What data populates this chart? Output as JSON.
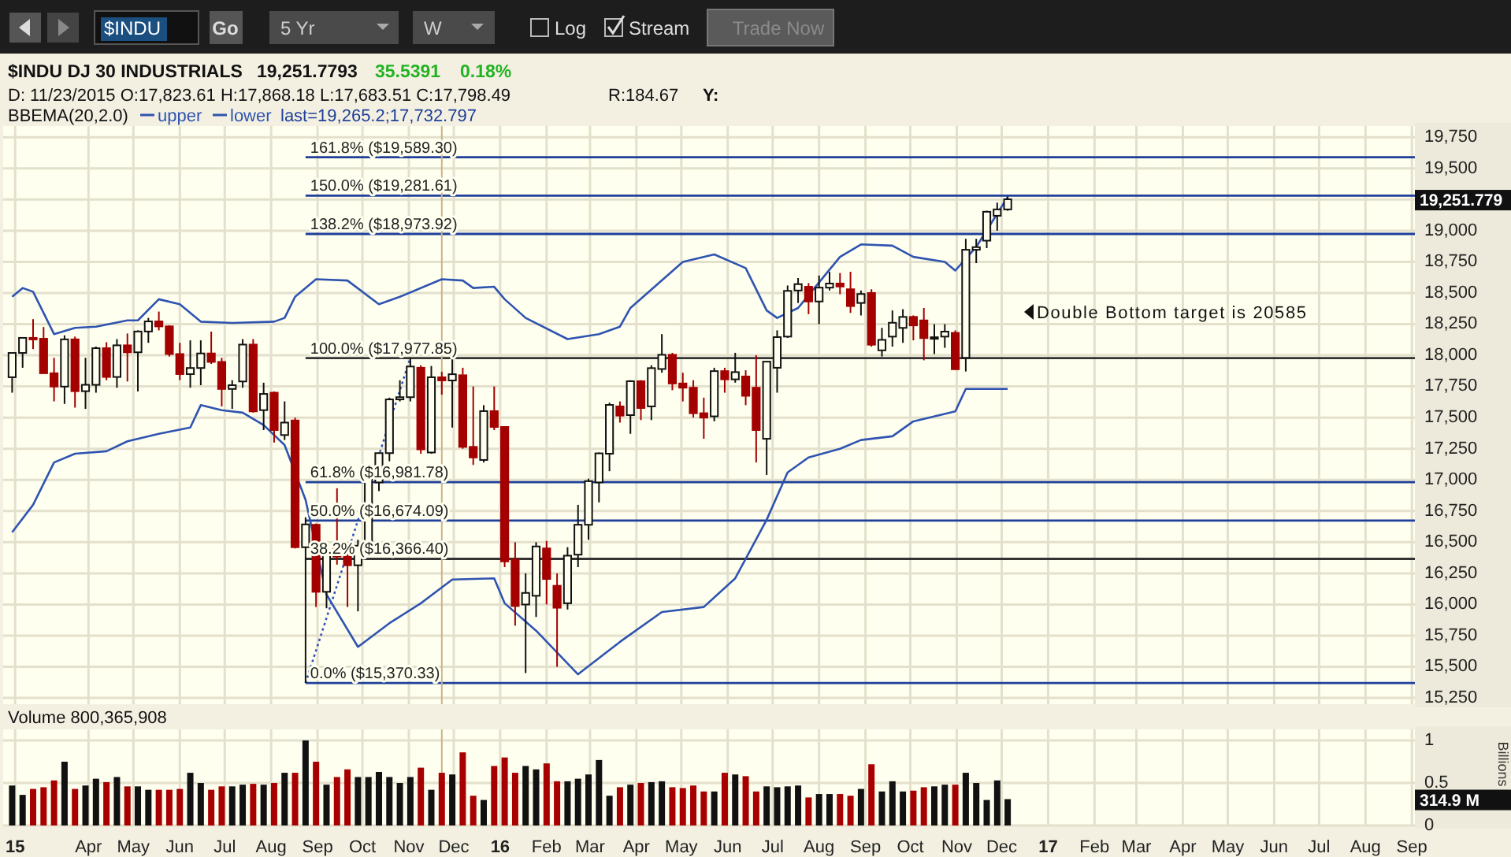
{
  "chart_data": [
    {
      "type": "candlestick",
      "title": "$INDU DJ 30 INDUSTRIALS",
      "legend_title": "BBEMA(20,2.0)",
      "legend": "top left",
      "grid": true,
      "tick_labels": "y",
      "x": [
        "2015-02-09",
        "2015-02-16",
        "2015-02-23",
        "2015-03-02",
        "2015-03-09",
        "2015-03-16",
        "2015-03-23",
        "2015-03-30",
        "2015-04-06",
        "2015-04-13",
        "2015-04-20",
        "2015-04-27",
        "2015-05-04",
        "2015-05-11",
        "2015-05-18",
        "2015-05-25",
        "2015-06-01",
        "2015-06-08",
        "2015-06-15",
        "2015-06-22",
        "2015-06-29",
        "2015-07-06",
        "2015-07-13",
        "2015-07-20",
        "2015-07-27",
        "2015-08-03",
        "2015-08-10",
        "2015-08-17",
        "2015-08-24",
        "2015-08-31",
        "2015-09-07",
        "2015-09-14",
        "2015-09-21",
        "2015-09-28",
        "2015-10-05",
        "2015-10-12",
        "2015-10-19",
        "2015-10-26",
        "2015-11-02",
        "2015-11-09",
        "2015-11-16",
        "2015-11-23",
        "2015-11-30",
        "2015-12-07",
        "2015-12-14",
        "2015-12-21",
        "2015-12-28",
        "2016-01-04",
        "2016-01-11",
        "2016-01-18",
        "2016-01-25",
        "2016-02-01",
        "2016-02-08",
        "2016-02-15",
        "2016-02-22",
        "2016-02-29",
        "2016-03-07",
        "2016-03-14",
        "2016-03-21",
        "2016-03-28",
        "2016-04-04",
        "2016-04-11",
        "2016-04-18",
        "2016-04-25",
        "2016-05-02",
        "2016-05-09",
        "2016-05-16",
        "2016-05-23",
        "2016-05-30",
        "2016-06-06",
        "2016-06-13",
        "2016-06-20",
        "2016-06-27",
        "2016-07-04",
        "2016-07-11",
        "2016-07-18",
        "2016-07-25",
        "2016-08-01",
        "2016-08-08",
        "2016-08-15",
        "2016-08-22",
        "2016-08-29",
        "2016-09-05",
        "2016-09-12",
        "2016-09-19",
        "2016-09-26",
        "2016-10-03",
        "2016-10-10",
        "2016-10-17",
        "2016-10-24",
        "2016-10-31",
        "2016-11-07",
        "2016-11-14",
        "2016-11-21",
        "2016-11-28",
        "2016-12-05"
      ],
      "ohlc": [
        [
          17824,
          18019,
          17700,
          18019
        ],
        [
          18019,
          18140,
          17900,
          18140
        ],
        [
          18140,
          18290,
          18050,
          18133
        ],
        [
          18133,
          18227,
          17856,
          17856
        ],
        [
          17856,
          17980,
          17630,
          17749
        ],
        [
          17749,
          18160,
          17610,
          18128
        ],
        [
          18128,
          18150,
          17580,
          17712
        ],
        [
          17712,
          17980,
          17570,
          17763
        ],
        [
          17763,
          18070,
          17700,
          18057
        ],
        [
          18057,
          18105,
          17800,
          17826
        ],
        [
          17826,
          18130,
          17740,
          18080
        ],
        [
          18080,
          18175,
          17790,
          18024
        ],
        [
          18024,
          18200,
          17710,
          18191
        ],
        [
          18191,
          18300,
          18100,
          18272
        ],
        [
          18272,
          18351,
          18200,
          18232
        ],
        [
          18232,
          18240,
          17990,
          18010
        ],
        [
          18010,
          18100,
          17800,
          17849
        ],
        [
          17849,
          18120,
          17740,
          17898
        ],
        [
          17898,
          18120,
          17760,
          18015
        ],
        [
          18015,
          18190,
          17930,
          17947
        ],
        [
          17947,
          17980,
          17590,
          17730
        ],
        [
          17730,
          17800,
          17570,
          17760
        ],
        [
          17790,
          18130,
          17740,
          18086
        ],
        [
          18086,
          18130,
          17540,
          17550
        ],
        [
          17560,
          17780,
          17400,
          17690
        ],
        [
          17700,
          17710,
          17300,
          17400
        ],
        [
          17360,
          17630,
          17320,
          17460
        ],
        [
          17477,
          17500,
          16450,
          16460
        ],
        [
          16460,
          16700,
          15370.33,
          16643
        ],
        [
          16640,
          16650,
          15980,
          16102
        ],
        [
          16102,
          16480,
          15970,
          16433
        ],
        [
          16450,
          16933,
          16320,
          16385
        ],
        [
          16385,
          16500,
          15980,
          16315
        ],
        [
          16315,
          16520,
          15945,
          16472
        ],
        [
          16500,
          17110,
          16450,
          17084
        ],
        [
          16980,
          17220,
          16910,
          17215
        ],
        [
          17215,
          17660,
          17150,
          17646
        ],
        [
          17646,
          17800,
          17630,
          17664
        ],
        [
          17664,
          17977.85,
          17630,
          17910
        ],
        [
          17900,
          17920,
          17210,
          17245
        ],
        [
          17220,
          17914,
          17210,
          17824
        ],
        [
          17823.61,
          17868.18,
          17683.51,
          17798.49
        ],
        [
          17798,
          17978,
          17420,
          17848
        ],
        [
          17840,
          17900,
          17250,
          17265
        ],
        [
          17265,
          17750,
          17120,
          17180
        ],
        [
          17160,
          17600,
          17140,
          17552
        ],
        [
          17552,
          17750,
          17400,
          17425
        ],
        [
          17425,
          17425,
          16300,
          16346
        ],
        [
          16360,
          16500,
          15830,
          15988
        ],
        [
          16000,
          16250,
          15450,
          16093
        ],
        [
          16070,
          16500,
          15900,
          16466
        ],
        [
          16450,
          16510,
          16000,
          16205
        ],
        [
          16150,
          16250,
          15500,
          15974
        ],
        [
          16010,
          16460,
          15960,
          16392
        ],
        [
          16400,
          16800,
          16300,
          16640
        ],
        [
          16640,
          17010,
          16520,
          16990
        ],
        [
          16980,
          17220,
          16820,
          17213
        ],
        [
          17210,
          17620,
          17070,
          17602
        ],
        [
          17590,
          17630,
          17460,
          17516
        ],
        [
          17520,
          17800,
          17370,
          17792
        ],
        [
          17792,
          17800,
          17480,
          17577
        ],
        [
          17590,
          17920,
          17480,
          17897
        ],
        [
          17890,
          18170,
          17860,
          18004
        ],
        [
          18004,
          18020,
          17720,
          17774
        ],
        [
          17774,
          17860,
          17630,
          17740
        ],
        [
          17740,
          17800,
          17500,
          17535
        ],
        [
          17535,
          17660,
          17330,
          17500
        ],
        [
          17510,
          17900,
          17470,
          17873
        ],
        [
          17873,
          17900,
          17700,
          17807
        ],
        [
          17807,
          18020,
          17780,
          17865
        ],
        [
          17830,
          17880,
          17600,
          17675
        ],
        [
          17740,
          18000,
          17140,
          17400
        ],
        [
          17330,
          17950,
          17040,
          17949
        ],
        [
          17900,
          18200,
          17700,
          18146
        ],
        [
          18150,
          18560,
          18140,
          18517
        ],
        [
          18520,
          18620,
          18420,
          18571
        ],
        [
          18550,
          18580,
          18330,
          18432
        ],
        [
          18432,
          18640,
          18250,
          18543
        ],
        [
          18543,
          18670,
          18520,
          18576
        ],
        [
          18576,
          18660,
          18490,
          18552
        ],
        [
          18530,
          18670,
          18340,
          18395
        ],
        [
          18420,
          18520,
          18320,
          18492
        ],
        [
          18500,
          18530,
          18070,
          18085
        ],
        [
          18040,
          18220,
          17990,
          18124
        ],
        [
          18150,
          18360,
          18070,
          18261
        ],
        [
          18220,
          18370,
          18100,
          18308
        ],
        [
          18308,
          18320,
          18120,
          18240
        ],
        [
          18280,
          18380,
          17960,
          18138
        ],
        [
          18138,
          18250,
          18010,
          18145
        ],
        [
          18150,
          18250,
          18060,
          18190
        ],
        [
          18180,
          18200,
          17883,
          17888
        ],
        [
          17980,
          18935,
          17870,
          18847
        ],
        [
          18847,
          18935,
          18740,
          18868
        ],
        [
          18920,
          19160,
          18860,
          19152
        ],
        [
          19120,
          19225,
          19000,
          19171
        ],
        [
          19171,
          19275,
          19160,
          19251.78
        ]
      ],
      "series": [
        {
          "name": "upper",
          "type": "line",
          "color": "#2f54b0",
          "x": [
            "2015-02-09",
            "2015-02-16",
            "2015-02-23",
            "2015-03-09",
            "2015-03-23",
            "2015-04-06",
            "2015-04-27",
            "2015-05-04",
            "2015-05-18",
            "2015-06-01",
            "2015-06-15",
            "2015-07-06",
            "2015-08-03",
            "2015-08-10",
            "2015-08-17",
            "2015-08-31",
            "2015-09-21",
            "2015-10-12",
            "2015-10-26",
            "2015-11-23",
            "2015-12-07",
            "2015-12-14",
            "2015-12-28",
            "2016-01-04",
            "2016-01-18",
            "2016-02-15",
            "2016-03-07",
            "2016-03-21",
            "2016-03-28",
            "2016-05-02",
            "2016-05-23",
            "2016-06-13",
            "2016-06-27",
            "2016-07-04",
            "2016-07-18",
            "2016-08-15",
            "2016-08-29",
            "2016-09-19",
            "2016-10-03",
            "2016-10-24",
            "2016-10-31",
            "2016-11-14",
            "2016-12-05"
          ],
          "values": [
            18470,
            18540,
            18510,
            18170,
            18220,
            18230,
            18280,
            18280,
            18450,
            18410,
            18270,
            18260,
            18270,
            18300,
            18470,
            18610,
            18600,
            18410,
            18470,
            18610,
            18600,
            18540,
            18550,
            18450,
            18300,
            18130,
            18170,
            18230,
            18380,
            18750,
            18810,
            18700,
            18360,
            18300,
            18380,
            18790,
            18890,
            18880,
            18790,
            18750,
            18680,
            18870,
            19270
          ]
        },
        {
          "name": "lower",
          "type": "line",
          "color": "#2f54b0",
          "x": [
            "2015-02-09",
            "2015-02-23",
            "2015-03-09",
            "2015-03-23",
            "2015-04-13",
            "2015-04-27",
            "2015-05-18",
            "2015-06-08",
            "2015-06-15",
            "2015-06-29",
            "2015-07-13",
            "2015-07-27",
            "2015-08-10",
            "2015-08-24",
            "2015-09-07",
            "2015-09-28",
            "2015-10-19",
            "2015-11-09",
            "2015-11-30",
            "2015-12-28",
            "2016-01-04",
            "2016-01-25",
            "2016-02-22",
            "2016-03-21",
            "2016-04-18",
            "2016-05-16",
            "2016-06-06",
            "2016-06-27",
            "2016-07-11",
            "2016-07-25",
            "2016-08-15",
            "2016-08-29",
            "2016-09-19",
            "2016-10-03",
            "2016-10-31",
            "2016-11-07",
            "2016-12-05"
          ],
          "values": [
            16580,
            16800,
            17140,
            17210,
            17230,
            17310,
            17370,
            17420,
            17600,
            17560,
            17540,
            17440,
            17280,
            16840,
            16080,
            15660,
            15850,
            16010,
            16200,
            16210,
            16010,
            15790,
            15440,
            15700,
            15940,
            15980,
            16210,
            16680,
            17060,
            17180,
            17250,
            17320,
            17350,
            17470,
            17550,
            17730,
            17730
          ]
        },
        {
          "type": "line",
          "color": "#3355bb",
          "line_style": "dotted",
          "x": [
            "2015-08-24",
            "2015-11-02"
          ],
          "values": [
            15370,
            17980
          ]
        }
      ],
      "xlim": [
        "2015-02-03",
        "2017-09-03"
      ],
      "xticks": [
        {
          "value": "2015-02-11",
          "label": null
        },
        {
          "value": "2015-04-01",
          "label": null
        },
        {
          "value": "2015-05-01",
          "label": null
        },
        {
          "value": "2015-06-01",
          "label": null
        },
        {
          "value": "2015-07-01",
          "label": null
        },
        {
          "value": "2015-08-01",
          "label": null
        },
        {
          "value": "2015-09-01",
          "label": null
        },
        {
          "value": "2015-10-01",
          "label": null
        },
        {
          "value": "2015-11-01",
          "label": null
        },
        {
          "value": "2015-12-01",
          "label": null
        },
        {
          "value": "2016-01-01",
          "label": null
        },
        {
          "value": "2016-02-01",
          "label": null
        },
        {
          "value": "2016-03-01",
          "label": null
        },
        {
          "value": "2016-04-01",
          "label": null
        },
        {
          "value": "2016-05-01",
          "label": null
        },
        {
          "value": "2016-06-01",
          "label": null
        },
        {
          "value": "2016-07-01",
          "label": null
        },
        {
          "value": "2016-08-01",
          "label": null
        },
        {
          "value": "2016-09-01",
          "label": null
        },
        {
          "value": "2016-10-01",
          "label": null
        },
        {
          "value": "2016-11-01",
          "label": null
        },
        {
          "value": "2016-12-01",
          "label": null
        },
        {
          "value": "2017-01-01",
          "label": null
        },
        {
          "value": "2017-02-01",
          "label": null
        },
        {
          "value": "2017-03-01",
          "label": null
        },
        {
          "value": "2017-04-01",
          "label": null
        },
        {
          "value": "2017-05-01",
          "label": null
        },
        {
          "value": "2017-06-01",
          "label": null
        },
        {
          "value": "2017-07-01",
          "label": null
        },
        {
          "value": "2017-08-01",
          "label": null
        },
        {
          "value": "2017-09-01",
          "label": null
        }
      ],
      "ylim": [
        15200,
        19840
      ],
      "yticks": [
        {
          "value": 15250,
          "label": "15,250"
        },
        {
          "value": 15500,
          "label": "15,500"
        },
        {
          "value": 15750,
          "label": "15,750"
        },
        {
          "value": 16000,
          "label": "16,000"
        },
        {
          "value": 16250,
          "label": "16,250"
        },
        {
          "value": 16500,
          "label": "16,500"
        },
        {
          "value": 16750,
          "label": "16,750"
        },
        {
          "value": 17000,
          "label": "17,000"
        },
        {
          "value": 17250,
          "label": "17,250"
        },
        {
          "value": 17500,
          "label": "17,500"
        },
        {
          "value": 17750,
          "label": "17,750"
        },
        {
          "value": 18000,
          "label": "18,000"
        },
        {
          "value": 18250,
          "label": "18,250"
        },
        {
          "value": 18500,
          "label": "18,500"
        },
        {
          "value": 18750,
          "label": "18,750"
        },
        {
          "value": 19000,
          "label": "19,000"
        },
        {
          "value": 19250,
          "label": null
        },
        {
          "value": 19500,
          "label": "19,500"
        },
        {
          "value": 19750,
          "label": "19,750"
        }
      ],
      "ref_lines": [
        {
          "axis": "y",
          "value": 19589.3,
          "label": "161.8% ($19,589.30)",
          "color": "#1f3f99"
        },
        {
          "axis": "y",
          "value": 19281.61,
          "label": "150.0% ($19,281.61)",
          "color": "#1f3f99"
        },
        {
          "axis": "y",
          "value": 18973.92,
          "label": "138.2% ($18,973.92)",
          "color": "#1f3f99"
        },
        {
          "axis": "y",
          "value": 17977.85,
          "label": "100.0% ($17,977.85)",
          "color": "#333333"
        },
        {
          "axis": "y",
          "value": 16981.78,
          "label": "61.8% ($16,981.78)",
          "color": "#1f3f99"
        },
        {
          "axis": "y",
          "value": 16674.09,
          "label": "50.0% ($16,674.09)",
          "color": "#1f3f99"
        },
        {
          "axis": "y",
          "value": 16366.4,
          "label": "38.2% ($16,366.40)",
          "color": "#333333"
        },
        {
          "axis": "y",
          "value": 15370.33,
          "label": "0.0% ($15,370.33)",
          "color": "#1f3f99"
        },
        {
          "axis": "x",
          "value": "2015-11-23",
          "color": "#c8b48c"
        }
      ],
      "annotations": [
        "$INDU",
        "Go",
        "5 Yr",
        "W",
        "Log",
        "Stream",
        "Trade Now",
        "19,251.7793",
        "35.5391",
        "0.18%",
        "D: 11/23/2015 O:17,823.61 H:17,868.18 L:17,683.51 C:17,798.49",
        "R:184.67",
        "Y:",
        "last=19,265.2;17,732.797",
        "Double Bottom target is 20585",
        "19,251.779"
      ]
    },
    {
      "type": "bar",
      "title": "Volume 800,365,908",
      "ylabel": "Billions",
      "grid": true,
      "x": [
        "2015-02-09",
        "2015-02-16",
        "2015-02-23",
        "2015-03-02",
        "2015-03-09",
        "2015-03-16",
        "2015-03-23",
        "2015-03-30",
        "2015-04-06",
        "2015-04-13",
        "2015-04-20",
        "2015-04-27",
        "2015-05-04",
        "2015-05-11",
        "2015-05-18",
        "2015-05-25",
        "2015-06-01",
        "2015-06-08",
        "2015-06-15",
        "2015-06-22",
        "2015-06-29",
        "2015-07-06",
        "2015-07-13",
        "2015-07-20",
        "2015-07-27",
        "2015-08-03",
        "2015-08-10",
        "2015-08-17",
        "2015-08-24",
        "2015-08-31",
        "2015-09-07",
        "2015-09-14",
        "2015-09-21",
        "2015-09-28",
        "2015-10-05",
        "2015-10-12",
        "2015-10-19",
        "2015-10-26",
        "2015-11-02",
        "2015-11-09",
        "2015-11-16",
        "2015-11-23",
        "2015-11-30",
        "2015-12-07",
        "2015-12-14",
        "2015-12-21",
        "2015-12-28",
        "2016-01-04",
        "2016-01-11",
        "2016-01-18",
        "2016-01-25",
        "2016-02-01",
        "2016-02-08",
        "2016-02-15",
        "2016-02-22",
        "2016-02-29",
        "2016-03-07",
        "2016-03-14",
        "2016-03-21",
        "2016-03-28",
        "2016-04-04",
        "2016-04-11",
        "2016-04-18",
        "2016-04-25",
        "2016-05-02",
        "2016-05-09",
        "2016-05-16",
        "2016-05-23",
        "2016-05-30",
        "2016-06-06",
        "2016-06-13",
        "2016-06-20",
        "2016-06-27",
        "2016-07-04",
        "2016-07-11",
        "2016-07-18",
        "2016-07-25",
        "2016-08-01",
        "2016-08-08",
        "2016-08-15",
        "2016-08-22",
        "2016-08-29",
        "2016-09-05",
        "2016-09-12",
        "2016-09-19",
        "2016-09-26",
        "2016-10-03",
        "2016-10-10",
        "2016-10-17",
        "2016-10-24",
        "2016-10-31",
        "2016-11-07",
        "2016-11-14",
        "2016-11-21",
        "2016-11-28",
        "2016-12-05"
      ],
      "values": [
        0.47,
        0.36,
        0.43,
        0.45,
        0.53,
        0.75,
        0.43,
        0.47,
        0.55,
        0.51,
        0.57,
        0.46,
        0.46,
        0.42,
        0.42,
        0.42,
        0.43,
        0.62,
        0.5,
        0.42,
        0.46,
        0.46,
        0.48,
        0.49,
        0.48,
        0.5,
        0.62,
        0.62,
        1.0,
        0.75,
        0.48,
        0.57,
        0.66,
        0.57,
        0.57,
        0.63,
        0.57,
        0.5,
        0.57,
        0.68,
        0.42,
        0.62,
        0.6,
        0.86,
        0.35,
        0.3,
        0.7,
        0.8,
        0.62,
        0.7,
        0.66,
        0.73,
        0.52,
        0.52,
        0.55,
        0.6,
        0.77,
        0.35,
        0.45,
        0.48,
        0.5,
        0.51,
        0.52,
        0.45,
        0.44,
        0.47,
        0.4,
        0.4,
        0.62,
        0.6,
        0.58,
        0.4,
        0.46,
        0.45,
        0.46,
        0.47,
        0.33,
        0.37,
        0.37,
        0.37,
        0.35,
        0.43,
        0.72,
        0.4,
        0.52,
        0.4,
        0.41,
        0.45,
        0.46,
        0.48,
        0.48,
        0.62,
        0.5,
        0.3,
        0.53,
        0.31
      ],
      "colors": [
        "#111111",
        "#111111",
        "#a80000",
        "#a80000",
        "#a80000",
        "#111111",
        "#a80000",
        "#111111",
        "#111111",
        "#a80000",
        "#111111",
        "#a80000",
        "#111111",
        "#111111",
        "#a80000",
        "#a80000",
        "#a80000",
        "#111111",
        "#111111",
        "#a80000",
        "#a80000",
        "#111111",
        "#111111",
        "#a80000",
        "#111111",
        "#a80000",
        "#111111",
        "#a80000",
        "#111111",
        "#a80000",
        "#111111",
        "#a80000",
        "#a80000",
        "#111111",
        "#111111",
        "#111111",
        "#111111",
        "#111111",
        "#111111",
        "#a80000",
        "#111111",
        "#a80000",
        "#111111",
        "#a80000",
        "#a80000",
        "#111111",
        "#a80000",
        "#a80000",
        "#a80000",
        "#111111",
        "#111111",
        "#a80000",
        "#a80000",
        "#111111",
        "#111111",
        "#111111",
        "#111111",
        "#111111",
        "#a80000",
        "#111111",
        "#a80000",
        "#111111",
        "#111111",
        "#a80000",
        "#a80000",
        "#a80000",
        "#a80000",
        "#111111",
        "#a80000",
        "#111111",
        "#a80000",
        "#a80000",
        "#111111",
        "#111111",
        "#111111",
        "#111111",
        "#a80000",
        "#111111",
        "#111111",
        "#a80000",
        "#a80000",
        "#111111",
        "#a80000",
        "#111111",
        "#111111",
        "#111111",
        "#a80000",
        "#a80000",
        "#111111",
        "#111111",
        "#a80000",
        "#111111",
        "#111111",
        "#111111",
        "#111111",
        "#111111"
      ],
      "xlim": [
        "2015-02-03",
        "2017-09-03"
      ],
      "xticks": [
        {
          "value": "2015-02-11",
          "label": "15"
        },
        {
          "value": "2015-04-01",
          "label": "Apr"
        },
        {
          "value": "2015-05-01",
          "label": "May"
        },
        {
          "value": "2015-06-01",
          "label": "Jun"
        },
        {
          "value": "2015-07-01",
          "label": "Jul"
        },
        {
          "value": "2015-08-01",
          "label": "Aug"
        },
        {
          "value": "2015-09-01",
          "label": "Sep"
        },
        {
          "value": "2015-10-01",
          "label": "Oct"
        },
        {
          "value": "2015-11-01",
          "label": "Nov"
        },
        {
          "value": "2015-12-01",
          "label": "Dec"
        },
        {
          "value": "2016-01-01",
          "label": "16"
        },
        {
          "value": "2016-02-01",
          "label": "Feb"
        },
        {
          "value": "2016-03-01",
          "label": "Mar"
        },
        {
          "value": "2016-04-01",
          "label": "Apr"
        },
        {
          "value": "2016-05-01",
          "label": "May"
        },
        {
          "value": "2016-06-01",
          "label": "Jun"
        },
        {
          "value": "2016-07-01",
          "label": "Jul"
        },
        {
          "value": "2016-08-01",
          "label": "Aug"
        },
        {
          "value": "2016-09-01",
          "label": "Sep"
        },
        {
          "value": "2016-10-01",
          "label": "Oct"
        },
        {
          "value": "2016-11-01",
          "label": "Nov"
        },
        {
          "value": "2016-12-01",
          "label": "Dec"
        },
        {
          "value": "2017-01-01",
          "label": "17"
        },
        {
          "value": "2017-02-01",
          "label": "Feb"
        },
        {
          "value": "2017-03-01",
          "label": "Mar"
        },
        {
          "value": "2017-04-01",
          "label": "Apr"
        },
        {
          "value": "2017-05-01",
          "label": "May"
        },
        {
          "value": "2017-06-01",
          "label": "Jun"
        },
        {
          "value": "2017-07-01",
          "label": "Jul"
        },
        {
          "value": "2017-08-01",
          "label": "Aug"
        },
        {
          "value": "2017-09-01",
          "label": "Sep"
        }
      ],
      "ylim": [
        0,
        1.13
      ],
      "yticks": [
        0,
        0.5,
        1
      ],
      "ref_lines": [
        {
          "axis": "x",
          "value": "2015-11-23",
          "color": "#c8b48c"
        }
      ],
      "annotations": [
        "314.9 M"
      ]
    }
  ]
}
